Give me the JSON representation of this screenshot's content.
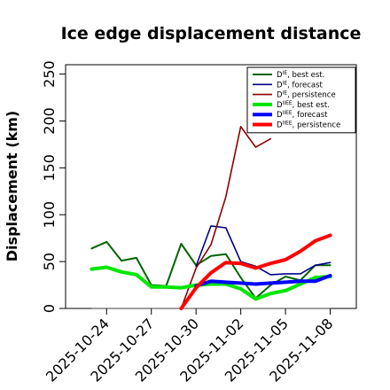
{
  "chart_data": {
    "type": "line",
    "title": "Ice edge displacement distance",
    "xlabel": "",
    "ylabel": "Displacement (km)",
    "ylim": [
      0,
      260
    ],
    "yticks": [
      0,
      50,
      100,
      150,
      200,
      250
    ],
    "xticks": [
      {
        "label": "2025-10-24",
        "x": 1,
        "color": "#000000"
      },
      {
        "label": "2025-10-27",
        "x": 4,
        "color": "#000000"
      },
      {
        "label": "2025-10-30",
        "x": 7,
        "color": "#228B22"
      },
      {
        "label": "2025-11-02",
        "x": 10,
        "color": "#000000"
      },
      {
        "label": "2025-11-05",
        "x": 13,
        "color": "#000000"
      },
      {
        "label": "2025-11-08",
        "x": 16,
        "color": "#000000"
      }
    ],
    "xlim": [
      -1.75,
      17.75
    ],
    "reference_line": {
      "y": 0,
      "x": [
        0,
        16
      ],
      "color": "#808080"
    },
    "legend_position": "top-right",
    "series": [
      {
        "name": "D",
        "superscript": "IE",
        "suffix": ", best est.",
        "color": "#006400",
        "width": 2,
        "x": [
          0,
          1,
          2,
          3,
          4,
          5,
          6,
          7,
          8,
          9,
          10,
          11,
          12,
          13,
          14,
          15,
          16
        ],
        "values": [
          64,
          71,
          51,
          54,
          25,
          24,
          69,
          46,
          56,
          58,
          33,
          11,
          25,
          34,
          30,
          46,
          46
        ]
      },
      {
        "name": "D",
        "superscript": "IE",
        "suffix": ", forecast",
        "color": "#00008B",
        "width": 1.6,
        "x": [
          7,
          8,
          9,
          10,
          11,
          12,
          13,
          14,
          15,
          16
        ],
        "values": [
          45,
          88,
          86,
          50,
          45,
          36,
          37,
          37,
          46,
          49
        ]
      },
      {
        "name": "D",
        "superscript": "IE",
        "suffix": ", persistence",
        "color": "#8B0000",
        "width": 1.6,
        "x": [
          6,
          7,
          8,
          9,
          10,
          11,
          12
        ],
        "values": [
          0,
          43,
          68,
          119,
          194,
          172,
          181
        ]
      },
      {
        "name": "D",
        "superscript": "IIEE",
        "suffix": ", best est.",
        "color": "#00E600",
        "width": 4,
        "x": [
          0,
          1,
          2,
          3,
          4,
          5,
          6,
          7,
          8,
          9,
          10,
          11,
          12,
          13,
          14,
          15,
          16
        ],
        "values": [
          42,
          44,
          39,
          36,
          23,
          23,
          22,
          25,
          26,
          26,
          21,
          10,
          16,
          19,
          26,
          33,
          34
        ]
      },
      {
        "name": "D",
        "superscript": "IIEE",
        "suffix": ", forecast",
        "color": "#0000FF",
        "width": 4,
        "x": [
          7,
          8,
          9,
          10,
          11,
          12,
          13,
          14,
          15,
          16
        ],
        "values": [
          24,
          29,
          28,
          27,
          26,
          27,
          28,
          29,
          29,
          35
        ]
      },
      {
        "name": "D",
        "superscript": "IIEE",
        "suffix": ", persistence",
        "color": "#FF0000",
        "width": 4,
        "x": [
          6,
          7,
          8,
          9,
          10,
          11,
          12,
          13,
          14,
          15,
          16
        ],
        "values": [
          0,
          22,
          38,
          49,
          48,
          43,
          48,
          52,
          61,
          72,
          78
        ]
      }
    ]
  }
}
